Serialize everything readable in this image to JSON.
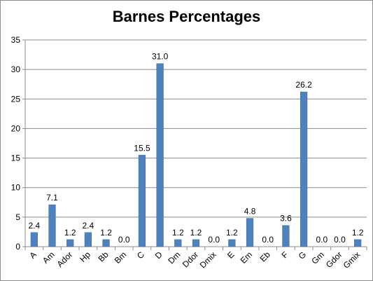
{
  "chart_data": {
    "type": "bar",
    "title": "Barnes Percentages",
    "xlabel": "",
    "ylabel": "",
    "ylim": [
      0,
      35
    ],
    "yticks": [
      0,
      5,
      10,
      15,
      20,
      25,
      30,
      35
    ],
    "grid": true,
    "legend": "none",
    "bar_color": "#4f81bd",
    "categories": [
      "A",
      "Am",
      "Ador",
      "Hp",
      "Bb",
      "Bm",
      "C",
      "D",
      "Dm",
      "Ddor",
      "Dmix",
      "E",
      "Em",
      "Eb",
      "F",
      "G",
      "Gm",
      "Gdor",
      "Gmix"
    ],
    "values": [
      2.4,
      7.1,
      1.2,
      2.4,
      1.2,
      0.0,
      15.5,
      31.0,
      1.2,
      1.2,
      0.0,
      1.2,
      4.8,
      0.0,
      3.6,
      26.2,
      0.0,
      0.0,
      1.2
    ],
    "data_labels": [
      "2.4",
      "7.1",
      "1.2",
      "2.4",
      "1.2",
      "0.0",
      "15.5",
      "31.0",
      "1.2",
      "1.2",
      "0.0",
      "1.2",
      "4.8",
      "0.0",
      "3.6",
      "26.2",
      "0.0",
      "0.0",
      "1.2"
    ]
  }
}
